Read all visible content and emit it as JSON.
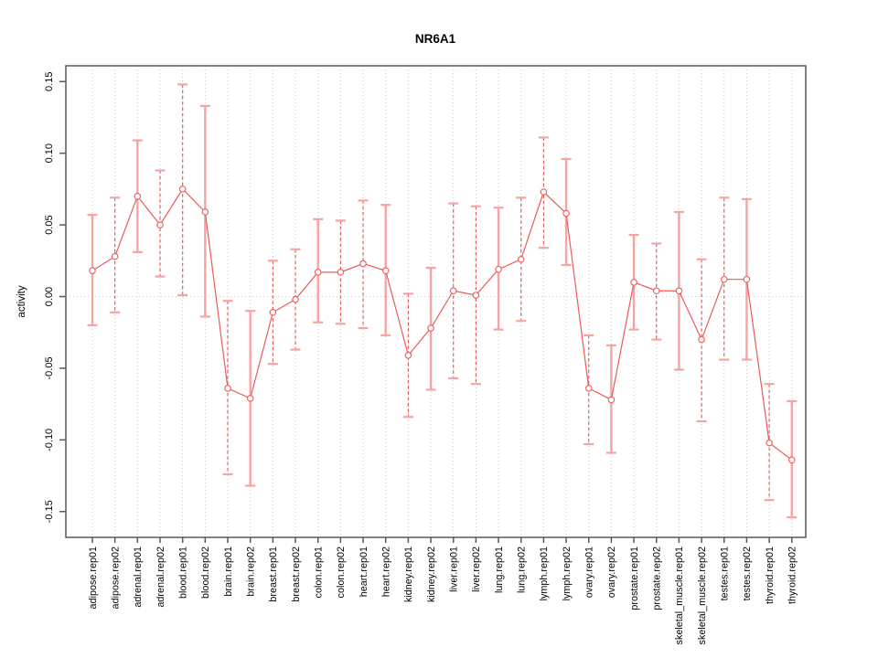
{
  "chart_data": {
    "type": "line",
    "variant": "points-with-error-bars",
    "title": "NR6A1",
    "xlabel": "",
    "ylabel": "activity",
    "ylim": [
      -0.168,
      0.161
    ],
    "yticks": [
      0.15,
      0.1,
      0.05,
      0.0,
      -0.05,
      -0.1,
      -0.15
    ],
    "ytick_labels": [
      "0.15",
      "0.10",
      "0.05",
      "0.00",
      "-0.05",
      "-0.10",
      "-0.15"
    ],
    "grid": {
      "vertical_dotted_per_category": true,
      "horizontal_dotted_zero_line": true
    },
    "legend": "none",
    "categories": [
      "adipose.rep01",
      "adipose.rep02",
      "adrenal.rep01",
      "adrenal.rep02",
      "blood.rep01",
      "blood.rep02",
      "brain.rep01",
      "brain.rep02",
      "breast.rep01",
      "breast.rep02",
      "colon.rep01",
      "colon.rep02",
      "heart.rep01",
      "heart.rep02",
      "kidney.rep01",
      "kidney.rep02",
      "liver.rep01",
      "liver.rep02",
      "lung.rep01",
      "lung.rep02",
      "lymph.rep01",
      "lymph.rep02",
      "ovary.rep01",
      "ovary.rep02",
      "prostate.rep01",
      "prostate.rep02",
      "skeletal_muscle.rep01",
      "skeletal_muscle.rep02",
      "testes.rep01",
      "testes.rep02",
      "thyroid.rep01",
      "thyroid.rep02"
    ],
    "series": [
      {
        "name": "activity",
        "values": [
          0.018,
          0.028,
          0.07,
          0.05,
          0.075,
          0.059,
          -0.064,
          -0.071,
          -0.011,
          -0.002,
          0.017,
          0.017,
          0.023,
          0.018,
          -0.041,
          -0.022,
          0.004,
          0.001,
          0.019,
          0.026,
          0.073,
          0.058,
          -0.064,
          -0.072,
          0.01,
          0.004,
          0.004,
          -0.03,
          0.012,
          0.012,
          -0.102,
          -0.114
        ],
        "err_hi": [
          0.057,
          0.069,
          0.109,
          0.088,
          0.148,
          0.133,
          -0.003,
          -0.01,
          0.025,
          0.033,
          0.054,
          0.053,
          0.067,
          0.064,
          0.002,
          0.02,
          0.065,
          0.063,
          0.062,
          0.069,
          0.111,
          0.096,
          -0.027,
          -0.034,
          0.043,
          0.037,
          0.059,
          0.026,
          0.069,
          0.068,
          -0.061,
          -0.073
        ],
        "err_lo": [
          -0.02,
          -0.011,
          0.031,
          0.014,
          0.001,
          -0.014,
          -0.124,
          -0.132,
          -0.047,
          -0.037,
          -0.018,
          -0.019,
          -0.022,
          -0.027,
          -0.084,
          -0.065,
          -0.057,
          -0.061,
          -0.023,
          -0.017,
          0.034,
          0.022,
          -0.103,
          -0.109,
          -0.023,
          -0.03,
          -0.051,
          -0.087,
          -0.044,
          -0.044,
          -0.142,
          -0.154
        ],
        "bar_styles": [
          "solid",
          "dashed",
          "solid",
          "dashed",
          "dashed",
          "solid",
          "dashed",
          "solid",
          "dashed",
          "dashed",
          "solid",
          "dashed",
          "dashed",
          "solid",
          "dashed",
          "solid",
          "dashed",
          "dashed",
          "solid",
          "dashed",
          "dashed",
          "solid",
          "dashed",
          "solid",
          "solid",
          "dashed",
          "solid",
          "dashed",
          "dashed",
          "solid",
          "dashed",
          "solid"
        ]
      }
    ],
    "colors": {
      "point_and_line": "#ee5a5a",
      "error_bar_solid": "#f5a3a3",
      "error_bar_dashed": "#e4504e",
      "error_bar_cap": "#f5a3a3",
      "grid": "#c9c9c9",
      "zero_line": "#cccccc",
      "axis_frame": "#595959",
      "label_text": "#000000"
    }
  }
}
